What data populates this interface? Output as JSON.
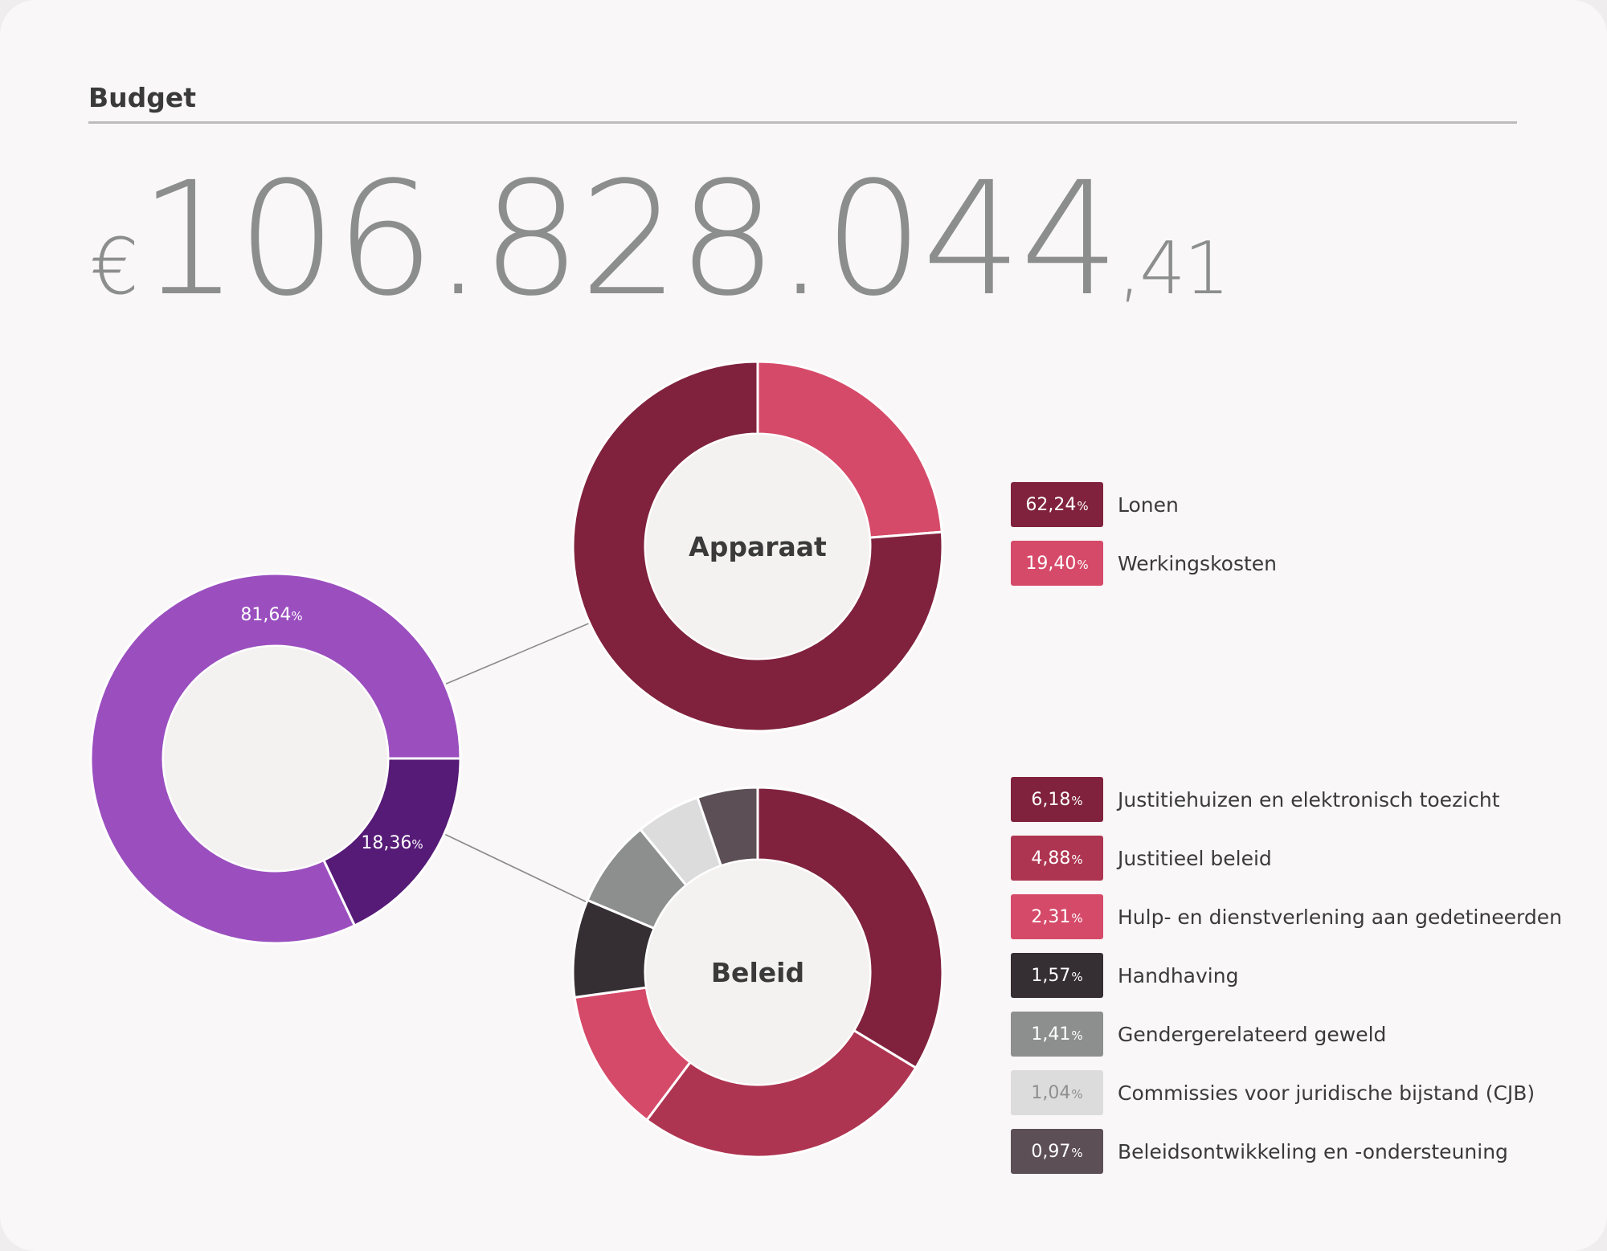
{
  "section_title": "Budget",
  "amount": {
    "currency": "€",
    "integer": "106.828.044",
    "decimals": ",41"
  },
  "colors": {
    "apparaat_main": "#9b4fbf",
    "beleid_main": "#561a77",
    "lonen": "#80223d",
    "werkingskosten": "#d64a69",
    "justitiehuizen": "#80223d",
    "justitieel_beleid": "#ae3551",
    "hulp": "#d64a69",
    "handhaving": "#352e32",
    "gender": "#8d8f8e",
    "cjb": "#dcdcdc",
    "beleidsontwikkeling": "#5c4f55",
    "inner": "#f3f2f0"
  },
  "chart_data": [
    {
      "type": "pie",
      "name": "main",
      "slices": [
        {
          "label": "81,64",
          "value": 81.64
        },
        {
          "label": "18,36",
          "value": 18.36
        }
      ],
      "unit": "%"
    },
    {
      "type": "pie",
      "title": "Apparaat",
      "slices": [
        {
          "label": "Lonen",
          "value": 62.24,
          "display": "62,24"
        },
        {
          "label": "Werkingskosten",
          "value": 19.4,
          "display": "19,40"
        }
      ],
      "unit": "%"
    },
    {
      "type": "pie",
      "title": "Beleid",
      "slices": [
        {
          "label": "Justitiehuizen en elektronisch toezicht",
          "value": 6.18,
          "display": "6,18"
        },
        {
          "label": "Justitieel beleid",
          "value": 4.88,
          "display": "4,88"
        },
        {
          "label": "Hulp- en dienstverlening aan gedetineerden",
          "value": 2.31,
          "display": "2,31"
        },
        {
          "label": "Handhaving",
          "value": 1.57,
          "display": "1,57"
        },
        {
          "label": "Gendergerelateerd geweld",
          "value": 1.41,
          "display": "1,41"
        },
        {
          "label": "Commissies voor juridische bijstand (CJB)",
          "value": 1.04,
          "display": "1,04"
        },
        {
          "label": "Beleidsontwikkeling en -ondersteuning",
          "value": 0.97,
          "display": "0,97"
        }
      ],
      "unit": "%"
    }
  ],
  "legend_apparaat": [
    {
      "value": "62,24",
      "unit": "%",
      "label": "Lonen",
      "color": "#80223d",
      "light": false
    },
    {
      "value": "19,40",
      "unit": "%",
      "label": "Werkingskosten",
      "color": "#d64a69",
      "light": false
    }
  ],
  "legend_beleid": [
    {
      "value": "6,18",
      "unit": "%",
      "label": "Justitiehuizen en elektronisch toezicht",
      "color": "#80223d",
      "light": false
    },
    {
      "value": "4,88",
      "unit": "%",
      "label": "Justitieel beleid",
      "color": "#ae3551",
      "light": false
    },
    {
      "value": "2,31",
      "unit": "%",
      "label": "Hulp- en dienstverlening aan gedetineerden",
      "color": "#d64a69",
      "light": false
    },
    {
      "value": "1,57",
      "unit": "%",
      "label": "Handhaving",
      "color": "#352e32",
      "light": false
    },
    {
      "value": "1,41",
      "unit": "%",
      "label": "Gendergerelateerd geweld",
      "color": "#8d8f8e",
      "light": false
    },
    {
      "value": "1,04",
      "unit": "%",
      "label": "Commissies voor juridische bijstand (CJB)",
      "color": "#dcdcdc",
      "light": true
    },
    {
      "value": "0,97",
      "unit": "%",
      "label": "Beleidsontwikkeling en -ondersteuning",
      "color": "#5c4f55",
      "light": false
    }
  ]
}
